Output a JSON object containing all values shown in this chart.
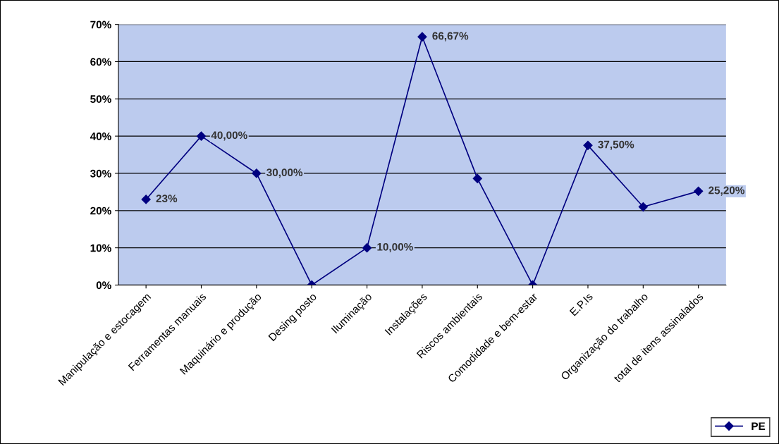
{
  "chart_data": {
    "type": "line",
    "categories": [
      "Manipulação e estocagem",
      "Ferramentas manuais",
      "Maquinário e produção",
      "Desing posto",
      "Iluminação",
      "Instalações",
      "Riscos ambientais",
      "Comodidade e bem-estar",
      "E.P.Is",
      "Organização do trabalho",
      "total de itens assinalados"
    ],
    "series": [
      {
        "name": "PE",
        "color": "#000080",
        "values": [
          23,
          40,
          30,
          0,
          10,
          66.67,
          28.6,
          0,
          37.5,
          21,
          25.2
        ],
        "value_labels": [
          "23%",
          "40,00%",
          "30,00%",
          null,
          "10,00%",
          "66,67%",
          null,
          null,
          "37,50%",
          null,
          "25,20%"
        ]
      }
    ],
    "ylim": [
      0,
      70
    ],
    "yticks": [
      {
        "value": 0,
        "label": "0%"
      },
      {
        "value": 10,
        "label": "10%"
      },
      {
        "value": 20,
        "label": "20%"
      },
      {
        "value": 30,
        "label": "30%"
      },
      {
        "value": 40,
        "label": "40%"
      },
      {
        "value": 50,
        "label": "50%"
      },
      {
        "value": 60,
        "label": "60%"
      },
      {
        "value": 70,
        "label": "70%"
      }
    ],
    "grid": "y",
    "legend": "bottom right",
    "marker": "diamond",
    "line_style": "solid"
  }
}
